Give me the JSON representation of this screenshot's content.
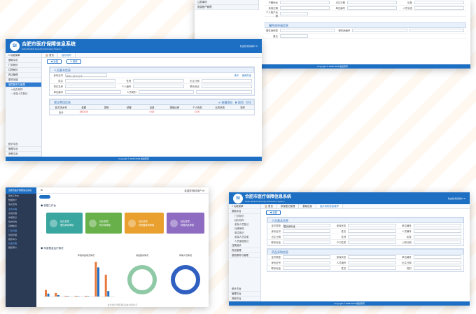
{
  "system": {
    "name_cn": "合肥市医疗保障信息系统",
    "name_en": "Hefei Medical Security Information System",
    "logo": "SI",
    "user_info": "欢迎您!测试用户 ✉",
    "footer": "Copyright © 2008-2018  版权所有"
  },
  "sidebar": {
    "toggle": "≡ 功能菜单",
    "items": [
      {
        "icon": "grid-icon",
        "label": "基础平台"
      },
      {
        "icon": "clinic-icon",
        "label": "门诊就诊"
      },
      {
        "icon": "bed-icon",
        "label": "住院就诊"
      },
      {
        "icon": "drug-icon",
        "label": "药店管理"
      },
      {
        "icon": "tool-icon",
        "label": "基本功能"
      },
      {
        "icon": "gear-icon",
        "label": "基层服务与管理"
      }
    ],
    "subitems": [
      "● 经办机构",
      "○ 参保人员登记"
    ],
    "bottom": [
      "统计平台",
      "管理平台",
      "其他平台"
    ]
  },
  "tabs": [
    "🏠 首页",
    "经办机构"
  ],
  "form": {
    "section1": "人员基本信息",
    "labels": [
      "身份证号",
      "姓名",
      "性别",
      "出生日期",
      "单位名称",
      "个人编号",
      "联系电话",
      "单位编号",
      "人员类别"
    ],
    "placeholder": "请输入身份证号",
    "links": [
      "读卡",
      "读身份证"
    ],
    "section2": "就诊费用信息",
    "actions": [
      "✔ 结算保存",
      "✖ 取消",
      "打印"
    ],
    "table_headers": [
      "处方流水号",
      "金额",
      "类别",
      "统筹",
      "自费",
      "报销比例",
      "个人负担",
      "业务状态",
      "操作"
    ],
    "table_row": [
      "合计",
      "1503.00",
      "",
      "",
      "0.00",
      "",
      "0.00",
      "",
      ""
    ]
  },
  "topright": {
    "rows": [
      [
        "户籍地址",
        "出生日期",
        "",
        "民族"
      ],
      [
        "参保日期",
        "单位编号",
        "",
        "人员状态"
      ],
      [
        "个人账户余额",
        "",
        "",
        ""
      ]
    ],
    "section": "慢性病申请信息",
    "labels": [
      "慢性病种类",
      "慢性病编号",
      "备注"
    ],
    "menu": [
      "注意事项",
      "基金账户管理"
    ]
  },
  "dashboard": {
    "title": "合肥市医疗保障信息系统",
    "side_items": [
      "我的工作台",
      "数据统计",
      "信息查询",
      "业务办理",
      "系统管理",
      "参保登记",
      "经办机构",
      "基础信息",
      "门诊管理",
      "住院管理",
      "报表中心",
      "基金管理",
      "稽核审计"
    ],
    "section1": "◆ 快捷工作台",
    "cards": [
      {
        "label": "待办事项",
        "sub": "慢性病待审核",
        "color": "#3aa6a0"
      },
      {
        "label": "待办事项",
        "sub": "转诊待审核",
        "color": "#68b04a"
      },
      {
        "label": "待办事项",
        "sub": "异地备案待审核",
        "color": "#e9a02f"
      },
      {
        "label": "待办事项",
        "sub": "特殊药品审核",
        "color": "#8d6cc1"
      }
    ],
    "section2": "◆ 年度基金运行情况",
    "chart_titles": [
      "年度基金收支情况",
      "基金结余情况",
      "参保人员情况"
    ],
    "footer": "技术支持:合肥医保信息技术有限公司"
  },
  "chart_data": [
    {
      "type": "bar",
      "title": "年度基金收支情况",
      "categories": [
        "1",
        "2",
        "3",
        "4",
        "5",
        "6",
        "7"
      ],
      "series": [
        {
          "name": "收入",
          "values": [
            18,
            10,
            2,
            2,
            2,
            95,
            60
          ],
          "color": "#e8783c"
        },
        {
          "name": "支出",
          "values": [
            8,
            4,
            1,
            1,
            1,
            80,
            15
          ],
          "color": "#1d6fc3"
        }
      ],
      "ylim": [
        0,
        100
      ]
    },
    {
      "type": "pie",
      "title": "基金结余情况",
      "values": [
        100
      ],
      "color": "#8fc9a6"
    },
    {
      "type": "pie",
      "title": "参保人员情况",
      "values": [
        100
      ],
      "color": "#2f5fc0"
    }
  ],
  "bottom_form": {
    "tabs": [
      "🏠 首页",
      "参保登记管理",
      "基础信息",
      "经办机构信息维护"
    ],
    "section1": "人员基本信息",
    "section2": "药品采购信息",
    "labels": [
      "证件类型",
      "身份证号",
      "参保状态",
      "人员编号",
      "单位编号",
      "出生日期",
      "联系电话",
      "姓名",
      "性别",
      "民族",
      "户口性质",
      "入职日期"
    ],
    "select_value": "居民身份证",
    "sidebar": [
      "基础平台",
      "门诊就诊",
      "经办机构",
      "参保人员登记",
      "待遇审核",
      "单位登记",
      "参保人员变更",
      "人员缴费登记",
      "住院就诊",
      "药店管理",
      "基层服务与管理",
      "统计平台",
      "管理平台",
      "其他平台"
    ]
  }
}
